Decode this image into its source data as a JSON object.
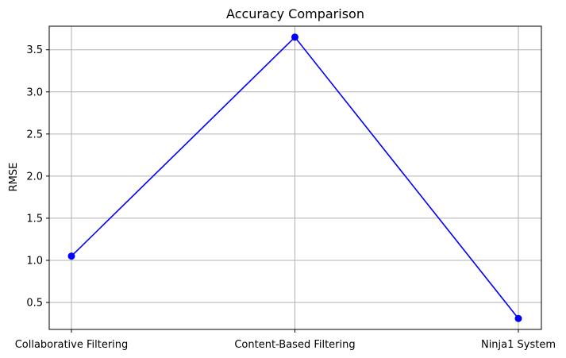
{
  "chart_data": {
    "type": "line",
    "title": "Accuracy Comparison",
    "xlabel": "",
    "ylabel": "RMSE",
    "categories": [
      "Collaborative Filtering",
      "Content-Based Filtering",
      "Ninja1 System"
    ],
    "series": [
      {
        "values": [
          1.05,
          3.65,
          0.31
        ],
        "color": "#0000ff",
        "marker": "circle"
      }
    ],
    "ylim": [
      0.18,
      3.78
    ],
    "yticks": [
      0.5,
      1.0,
      1.5,
      2.0,
      2.5,
      3.0,
      3.5
    ],
    "ytick_labels": [
      "0.5",
      "1.0",
      "1.5",
      "2.0",
      "2.5",
      "3.0",
      "3.5"
    ],
    "grid": true,
    "legend": false
  }
}
